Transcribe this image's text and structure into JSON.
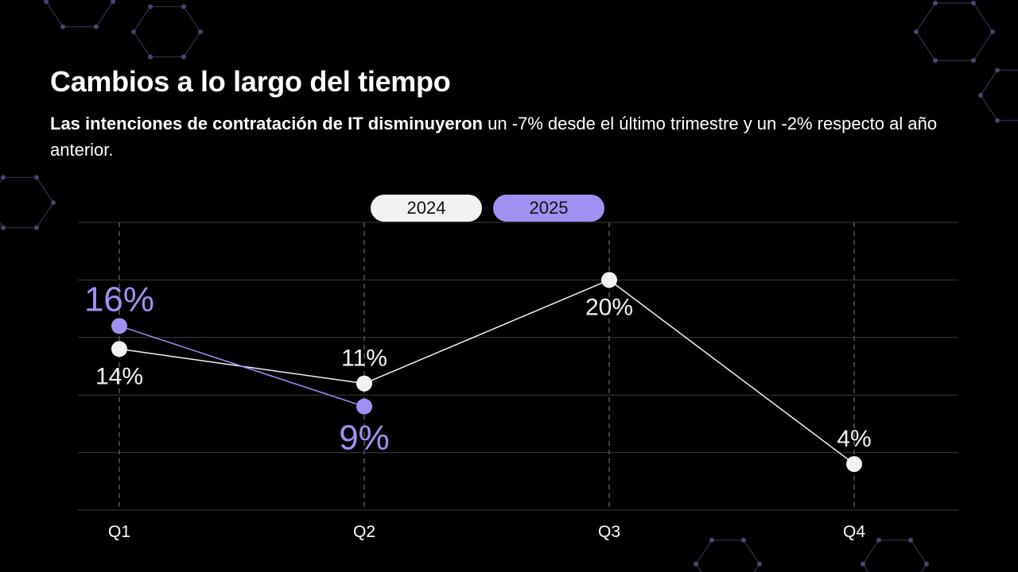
{
  "header": {
    "title": "Cambios a lo largo del tiempo",
    "subtitle_bold": "Las intenciones de contratación de IT disminuyeron",
    "subtitle_rest": " un -7% desde el último trimestre y un -2% respecto al año anterior."
  },
  "colors": {
    "background": "#000000",
    "series_2024": "#f2f2f2",
    "series_2025": "#9f91f2",
    "gridline": "#3a3a3a",
    "hex_deco": "#2a2840"
  },
  "chart_data": {
    "type": "line",
    "title": "Cambios a lo largo del tiempo",
    "categories": [
      "Q1",
      "Q2",
      "Q3",
      "Q4"
    ],
    "series": [
      {
        "name": "2024",
        "values": [
          14,
          11,
          20,
          4
        ],
        "labels": [
          "14%",
          "11%",
          "20%",
          "4%"
        ]
      },
      {
        "name": "2025",
        "values": [
          16,
          9,
          null,
          null
        ],
        "labels": [
          "16%",
          "9%",
          "",
          ""
        ]
      }
    ],
    "ylim": [
      0,
      25
    ],
    "grid": true,
    "legend_position": "top-center",
    "xlabel": "",
    "ylabel": ""
  }
}
